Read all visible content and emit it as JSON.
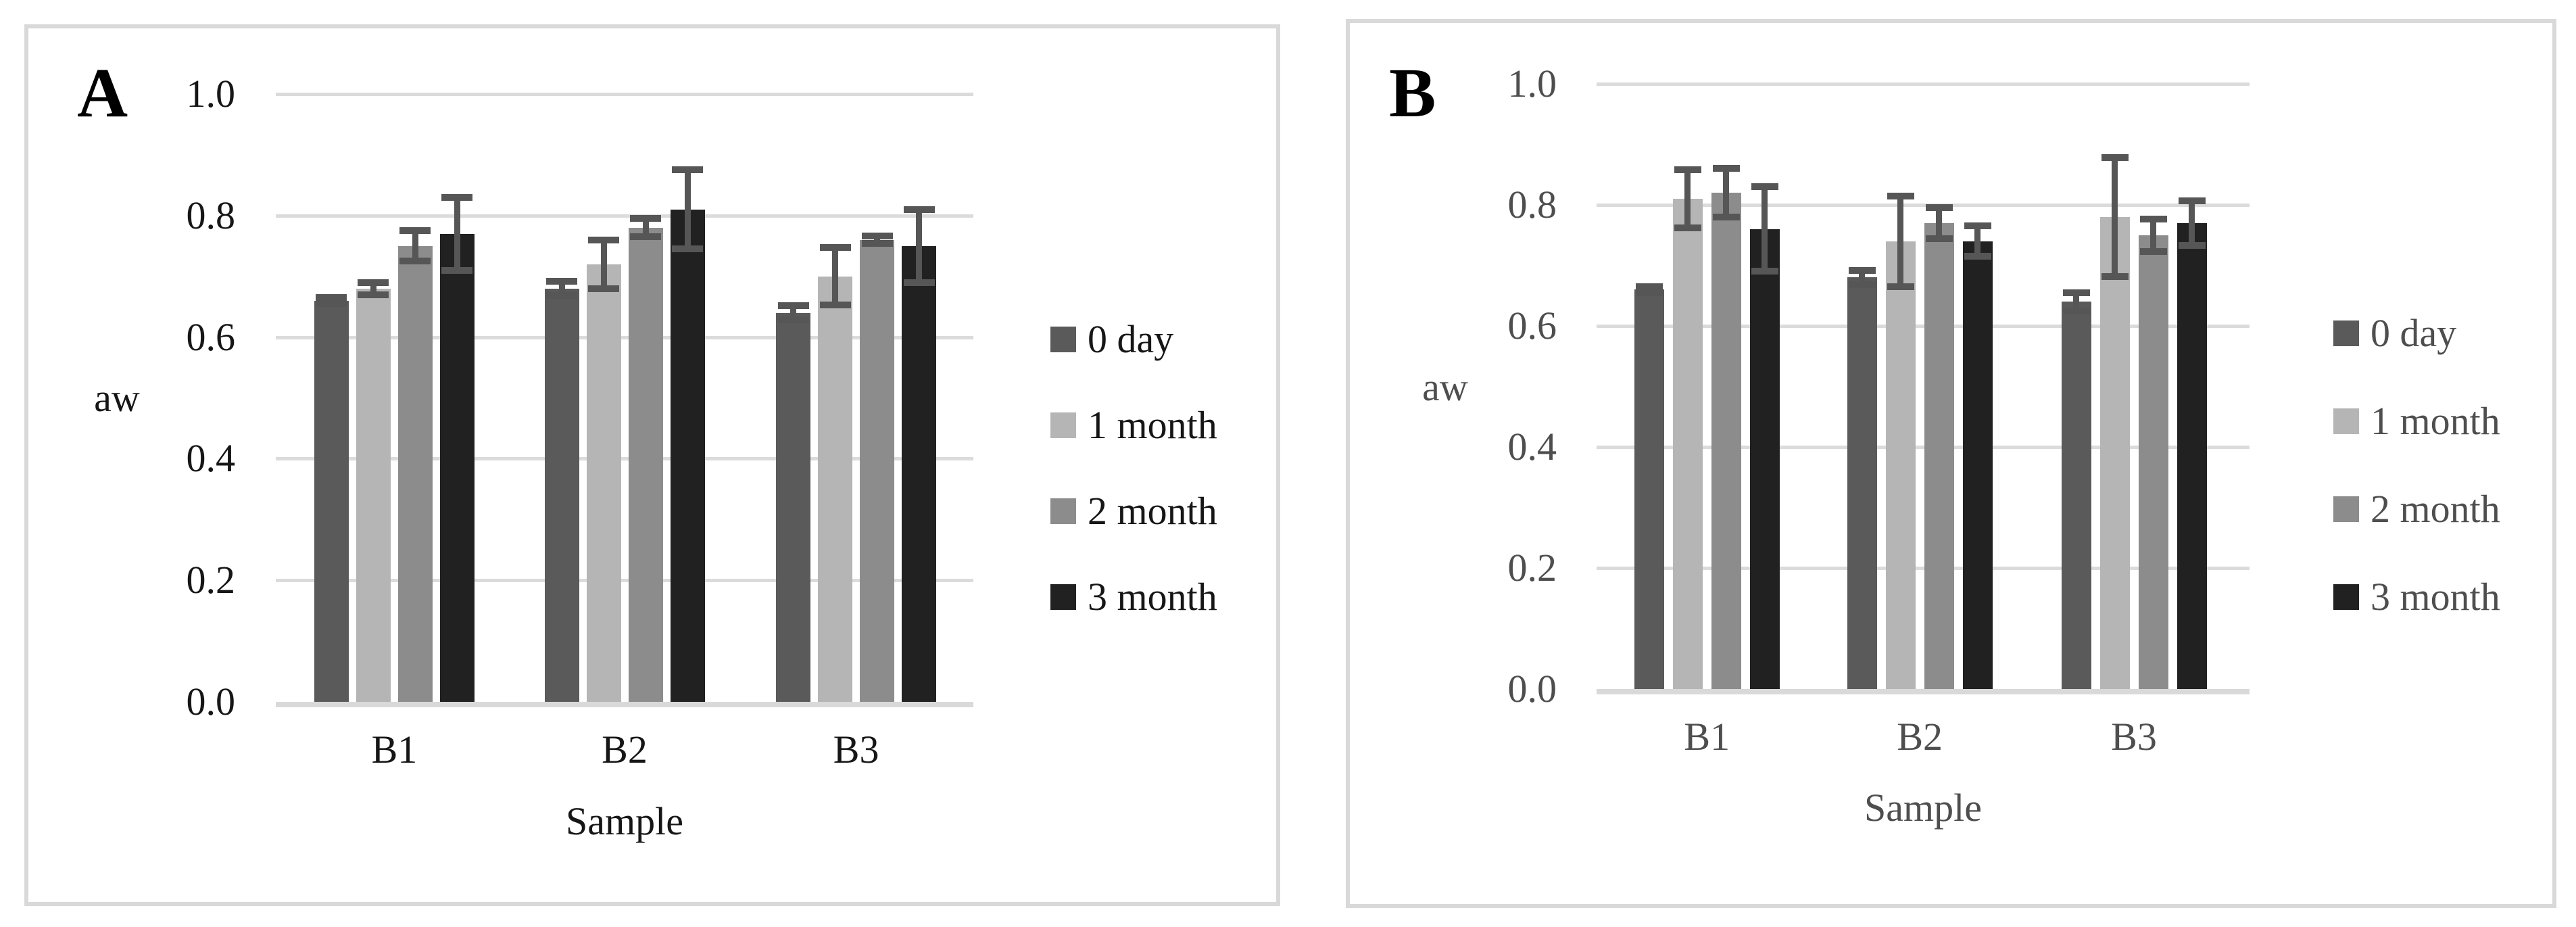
{
  "figure_background": "#ffffff",
  "panel_border_color": "#d9d9d9",
  "chart_data": [
    {
      "type": "bar",
      "panel_label": "A",
      "title": "",
      "xlabel": "Sample",
      "ylabel": "aw",
      "categories": [
        "B1",
        "B2",
        "B3"
      ],
      "series": [
        {
          "name": "0 day",
          "color": "#5a5a5a",
          "values": [
            0.66,
            0.68,
            0.64
          ],
          "errors": [
            0.005,
            0.012,
            0.012
          ]
        },
        {
          "name": "1 month",
          "color": "#b5b5b5",
          "values": [
            0.68,
            0.72,
            0.7
          ],
          "errors": [
            0.01,
            0.04,
            0.047
          ]
        },
        {
          "name": "2 month",
          "color": "#8c8c8c",
          "values": [
            0.75,
            0.78,
            0.76
          ],
          "errors": [
            0.025,
            0.015,
            0.006
          ]
        },
        {
          "name": "3 month",
          "color": "#212121",
          "values": [
            0.77,
            0.81,
            0.75
          ],
          "errors": [
            0.06,
            0.065,
            0.06
          ]
        }
      ],
      "ylim": [
        0.0,
        1.0
      ],
      "ytick_labels": [
        "1.0",
        "0.8",
        "0.6",
        "0.4",
        "0.2",
        "0.0"
      ],
      "grid": true,
      "legend_position": "right",
      "error_bar_color": "#565656",
      "gridline_color": "#dbdbdb",
      "text_color": "#161616"
    },
    {
      "type": "bar",
      "panel_label": "B",
      "title": "",
      "xlabel": "Sample",
      "ylabel": "aw",
      "categories": [
        "B1",
        "B2",
        "B3"
      ],
      "series": [
        {
          "name": "0 day",
          "color": "#5a5a5a",
          "values": [
            0.66,
            0.68,
            0.64
          ],
          "errors": [
            0.005,
            0.012,
            0.015
          ]
        },
        {
          "name": "1 month",
          "color": "#b5b5b5",
          "values": [
            0.81,
            0.74,
            0.78
          ],
          "errors": [
            0.048,
            0.075,
            0.098
          ]
        },
        {
          "name": "2 month",
          "color": "#8c8c8c",
          "values": [
            0.82,
            0.77,
            0.75
          ],
          "errors": [
            0.04,
            0.026,
            0.027
          ]
        },
        {
          "name": "3 month",
          "color": "#212121",
          "values": [
            0.76,
            0.74,
            0.77
          ],
          "errors": [
            0.07,
            0.025,
            0.037
          ]
        }
      ],
      "ylim": [
        0.0,
        1.0
      ],
      "ytick_labels": [
        "1.0",
        "0.8",
        "0.6",
        "0.4",
        "0.2",
        "0.0"
      ],
      "grid": true,
      "legend_position": "right",
      "error_bar_color": "#565656",
      "gridline_color": "#dbdbdb",
      "text_color": "#4e4e4e"
    }
  ]
}
